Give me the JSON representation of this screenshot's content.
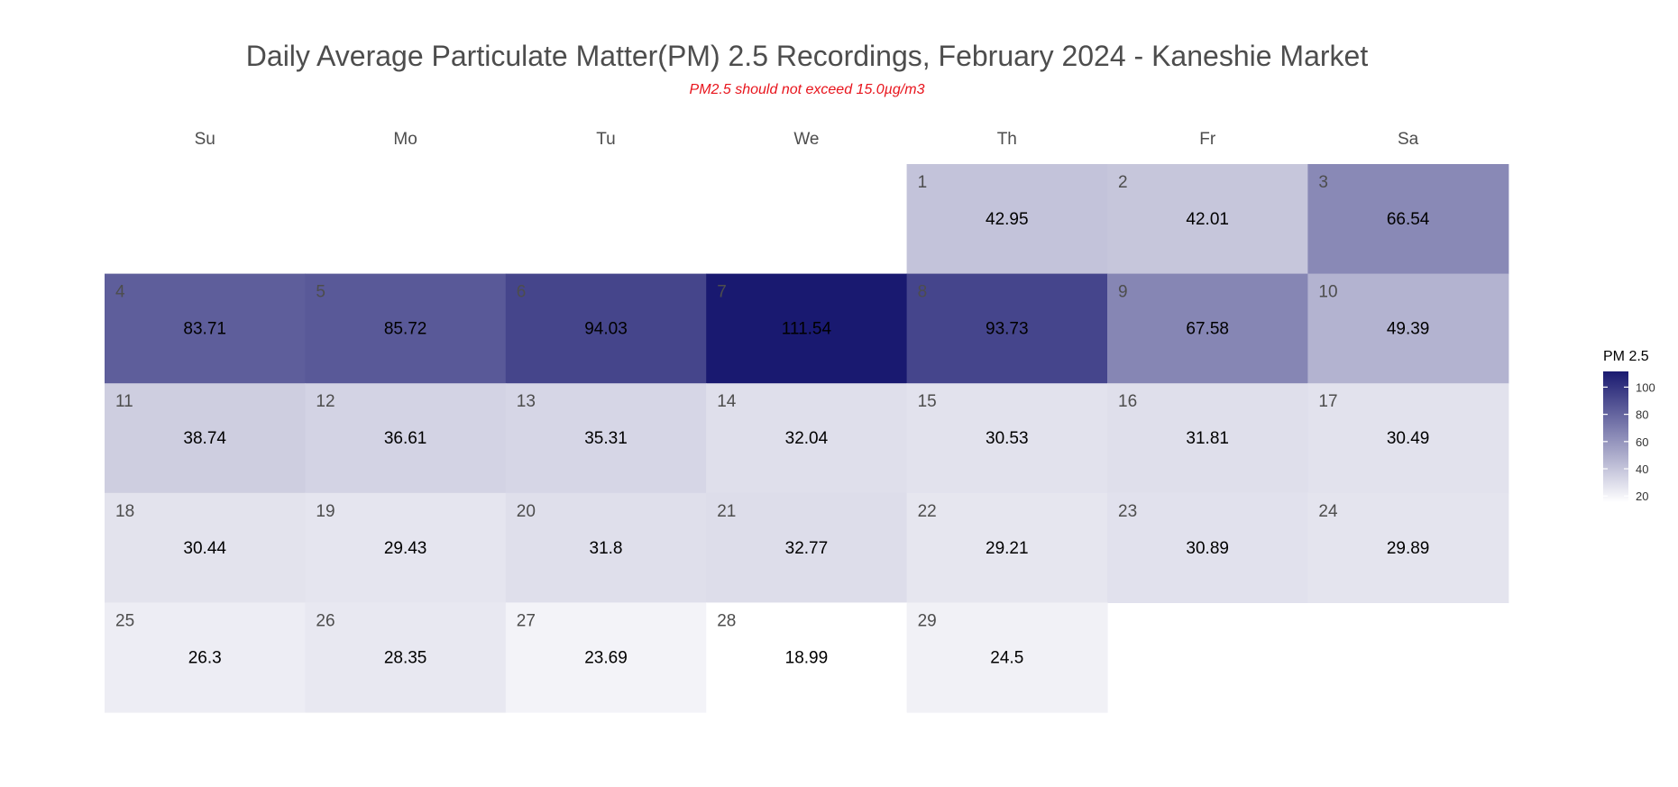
{
  "chart_data": {
    "type": "heatmap",
    "title": "Daily Average Particulate Matter(PM) 2.5 Recordings, February 2024 - Kaneshie Market",
    "subtitle": "PM2.5 should not exceed 15.0µg/m3",
    "weekdays": [
      "Su",
      "Mo",
      "Tu",
      "We",
      "Th",
      "Fr",
      "Sa"
    ],
    "first_weekday_index": 4,
    "days": [
      {
        "day": "1",
        "value": 42.95
      },
      {
        "day": "2",
        "value": 42.01
      },
      {
        "day": "3",
        "value": 66.54
      },
      {
        "day": "4",
        "value": 83.71
      },
      {
        "day": "5",
        "value": 85.72
      },
      {
        "day": "6",
        "value": 94.03
      },
      {
        "day": "7",
        "value": 111.54
      },
      {
        "day": "8",
        "value": 93.73
      },
      {
        "day": "9",
        "value": 67.58
      },
      {
        "day": "10",
        "value": 49.39
      },
      {
        "day": "11",
        "value": 38.74
      },
      {
        "day": "12",
        "value": 36.61
      },
      {
        "day": "13",
        "value": 35.31
      },
      {
        "day": "14",
        "value": 32.04
      },
      {
        "day": "15",
        "value": 30.53
      },
      {
        "day": "16",
        "value": 31.81
      },
      {
        "day": "17",
        "value": 30.49
      },
      {
        "day": "18",
        "value": 30.44
      },
      {
        "day": "19",
        "value": 29.43
      },
      {
        "day": "20",
        "value": 31.8
      },
      {
        "day": "21",
        "value": 32.77
      },
      {
        "day": "22",
        "value": 29.21
      },
      {
        "day": "23",
        "value": 30.89
      },
      {
        "day": "24",
        "value": 29.89
      },
      {
        "day": "25",
        "value": 26.3
      },
      {
        "day": "26",
        "value": 28.35
      },
      {
        "day": "27",
        "value": 23.69
      },
      {
        "day": "28",
        "value": 18.99
      },
      {
        "day": "29",
        "value": 24.5
      }
    ],
    "legend": {
      "title": "PM 2.5",
      "ticks": [
        "20",
        "40",
        "60",
        "80",
        "100"
      ],
      "range": [
        18.99,
        111.54
      ]
    },
    "colors": {
      "low": "#ffffff",
      "high": "#191970",
      "subtitle": "#e8141c",
      "title": "#4d4d4d"
    }
  }
}
